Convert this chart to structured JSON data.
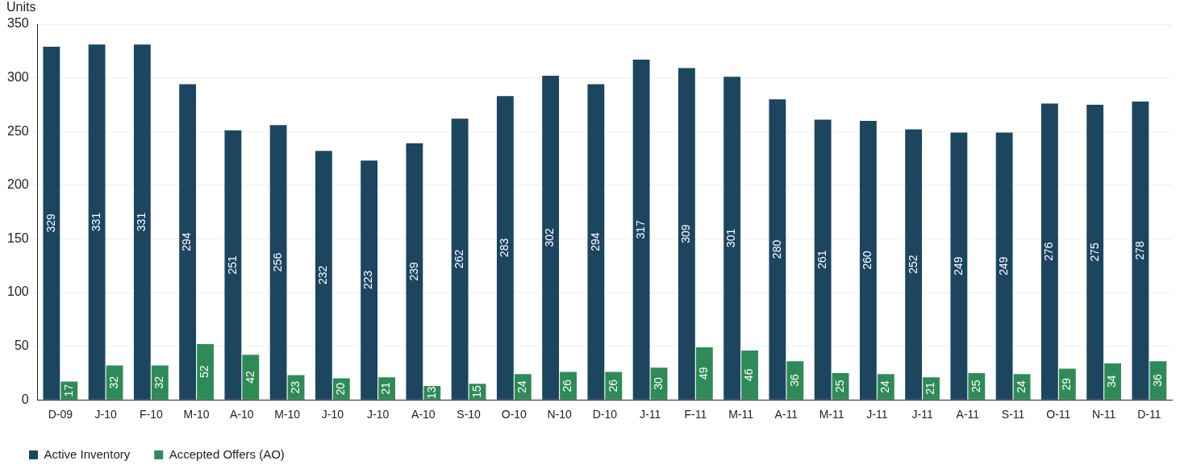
{
  "chart_data": {
    "type": "bar",
    "ylabel": "Units",
    "categories": [
      "D-09",
      "J-10",
      "F-10",
      "M-10",
      "A-10",
      "M-10",
      "J-10",
      "J-10",
      "A-10",
      "S-10",
      "O-10",
      "N-10",
      "D-10",
      "J-11",
      "F-11",
      "M-11",
      "A-11",
      "M-11",
      "J-11",
      "J-11",
      "A-11",
      "S-11",
      "O-11",
      "N-11",
      "D-11"
    ],
    "series": [
      {
        "name": "Active Inventory",
        "color": "#1c4560",
        "values": [
          329,
          331,
          331,
          294,
          251,
          256,
          232,
          223,
          239,
          262,
          283,
          302,
          294,
          317,
          309,
          301,
          280,
          261,
          260,
          252,
          249,
          249,
          276,
          275,
          278
        ]
      },
      {
        "name": "Accepted Offers (AO)",
        "color": "#2e8b57",
        "values": [
          17,
          32,
          32,
          52,
          42,
          23,
          20,
          21,
          13,
          15,
          24,
          26,
          26,
          30,
          49,
          46,
          36,
          25,
          24,
          21,
          25,
          24,
          29,
          34,
          36
        ]
      }
    ],
    "ylim": [
      0,
      350
    ],
    "yticks": [
      0,
      50,
      100,
      150,
      200,
      250,
      300,
      350
    ],
    "grid": "y",
    "legend": "bottom left",
    "data_labels": true
  }
}
